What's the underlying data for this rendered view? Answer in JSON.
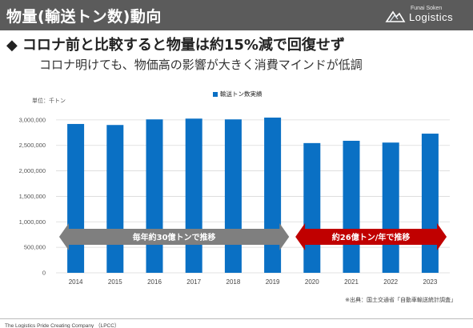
{
  "header": {
    "title": "物量(輸送トン数)動向",
    "logo_small": "Funai Soken",
    "logo_big": "Logistics"
  },
  "headline": {
    "marker": "◆",
    "text": "コロナ前と比較すると物量は約15%減で回復せず"
  },
  "subline": "コロナ明けても、物価高の影響が大きく消費マインドが低調",
  "chart_data": {
    "type": "bar",
    "unit_label": "単位：千トン",
    "legend": "輸送トン数実績",
    "categories": [
      "2014",
      "2015",
      "2016",
      "2017",
      "2018",
      "2019",
      "2020",
      "2021",
      "2022",
      "2023"
    ],
    "series": [
      {
        "name": "輸送トン数実績",
        "values": [
          2920000,
          2900000,
          3010000,
          3025000,
          3010000,
          3045000,
          2545000,
          2590000,
          2555000,
          2730000
        ]
      }
    ],
    "ylim": [
      0,
      3500000
    ],
    "yticks": [
      0,
      500000,
      1000000,
      1500000,
      2000000,
      2500000,
      3000000
    ],
    "ytick_labels": [
      "0",
      "500,000",
      "1,000,000",
      "1,500,000",
      "2,000,000",
      "2,500,000",
      "3,000,000"
    ],
    "grid": true,
    "legend_position": "top-center",
    "bar_color": "#0a70c4",
    "annotations": [
      {
        "text": "毎年約30億トンで推移",
        "from": "2014",
        "to": "2019",
        "color": "#7f7f7f"
      },
      {
        "text": "約26億トン/年で推移",
        "from": "2020",
        "to": "2023",
        "color": "#c00000"
      }
    ]
  },
  "source": "※出典：国土交通省「自動車輸送統計調査」",
  "footer": "The Logistics Pride Creating Company （LPCC）"
}
